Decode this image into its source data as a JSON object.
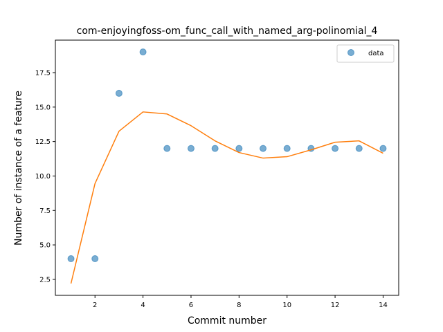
{
  "chart_data": {
    "type": "scatter",
    "title": "com-enjoyingfoss-om_func_call_with_named_arg-polinomial_4",
    "xlabel": "Commit number",
    "ylabel": "Number of instance of a feature",
    "xlim": [
      0.35,
      14.65
    ],
    "ylim": [
      1.34,
      19.86
    ],
    "x_ticks": [
      2,
      4,
      6,
      8,
      10,
      12,
      14
    ],
    "y_ticks": [
      2.5,
      5.0,
      7.5,
      10.0,
      12.5,
      15.0,
      17.5
    ],
    "grid": false,
    "legend_position": "top-right",
    "series": [
      {
        "name": "data",
        "kind": "scatter",
        "color": "#1f77b4",
        "x": [
          1,
          2,
          3,
          4,
          5,
          6,
          7,
          8,
          9,
          10,
          11,
          12,
          13,
          14
        ],
        "y": [
          4,
          4,
          16,
          19,
          12,
          12,
          12,
          12,
          12,
          12,
          12,
          12,
          12,
          12
        ]
      },
      {
        "kind": "line",
        "color": "#ff7f0e",
        "x": [
          1,
          2,
          3,
          4,
          5,
          6,
          7,
          8,
          9,
          10,
          11,
          12,
          13,
          14
        ],
        "y": [
          2.2,
          9.45,
          13.25,
          14.65,
          14.5,
          13.65,
          12.55,
          11.7,
          11.3,
          11.4,
          11.9,
          12.45,
          12.55,
          11.65
        ]
      }
    ]
  }
}
